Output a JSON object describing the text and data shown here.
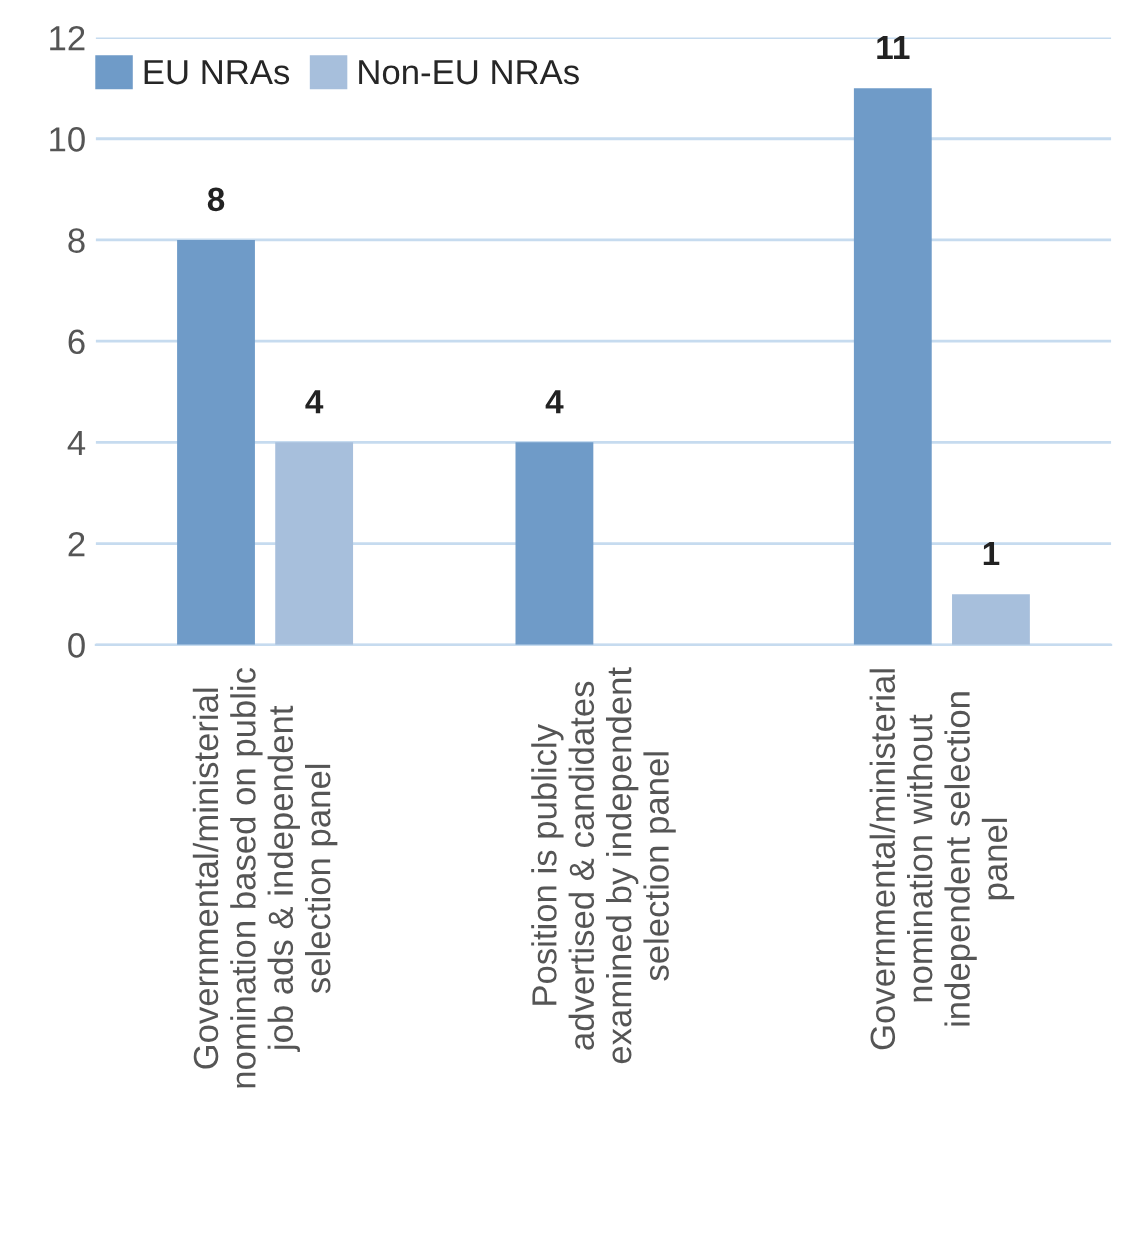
{
  "chart_data": {
    "type": "bar",
    "categories": [
      "Governmental/ministerial\nnomination based on public\njob ads & independent\nselection panel",
      "Position is publicly\nadvertised & candidates\nexamined by independent\nselection panel",
      "Governmental/ministerial\nnomination without\nindependent selection\npanel"
    ],
    "series": [
      {
        "name": "EU NRAs",
        "color": "#6f9bc8",
        "values": [
          8,
          4,
          11
        ],
        "value_labels": [
          "8",
          "4",
          "11"
        ]
      },
      {
        "name": "Non-EU NRAs",
        "color": "#a7bfdc",
        "values": [
          4,
          null,
          1
        ],
        "value_labels": [
          "4",
          null,
          "1"
        ]
      }
    ],
    "ylim": [
      0,
      12
    ],
    "yticks": [
      0,
      2,
      4,
      6,
      8,
      10,
      12
    ],
    "grid": "y",
    "legend": "top left"
  }
}
